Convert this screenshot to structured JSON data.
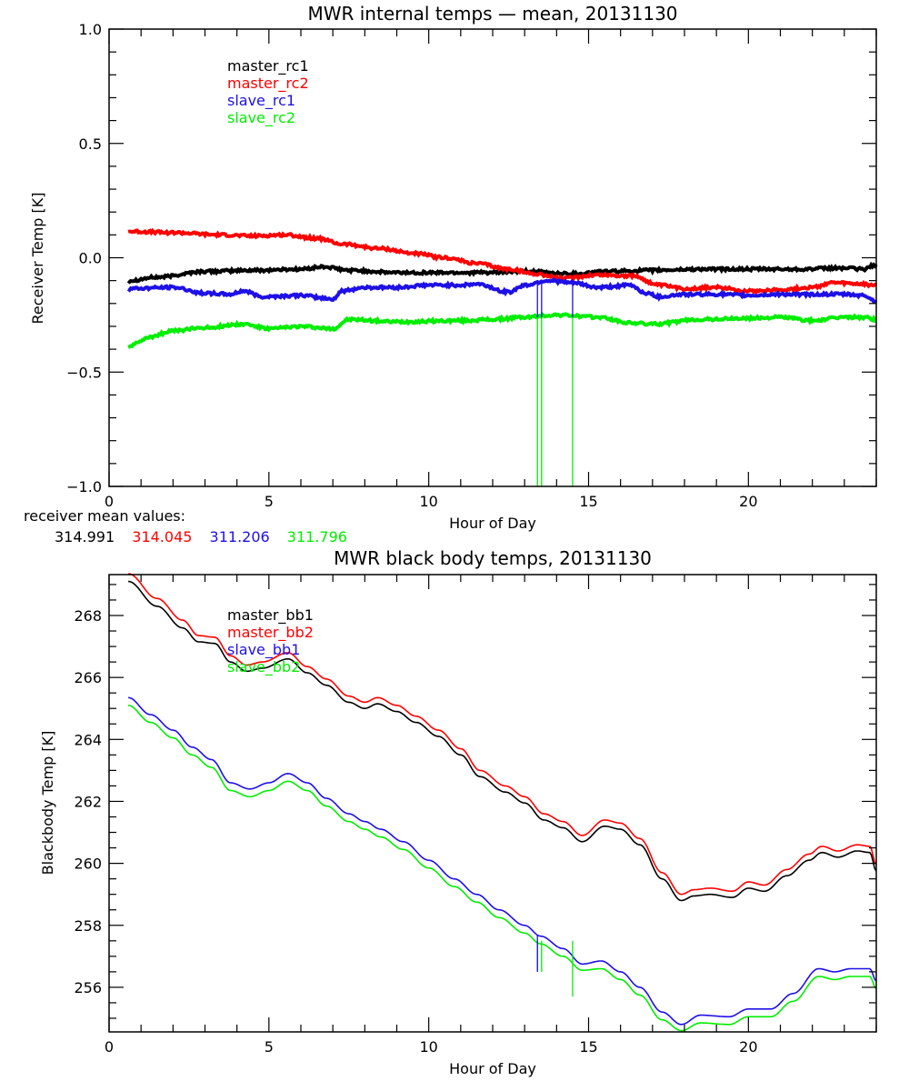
{
  "colors": {
    "black": "#000000",
    "red": "#ff0000",
    "blue": "#1e10e6",
    "green": "#00ee00"
  },
  "chart_data": [
    {
      "type": "line",
      "title": "MWR internal temps — mean, 20131130",
      "xlabel": "Hour of Day",
      "ylabel": "Receiver Temp [K]",
      "xlim": [
        0,
        24
      ],
      "ylim": [
        -1.0,
        1.0
      ],
      "xticks": [
        0,
        5,
        10,
        15,
        20
      ],
      "xtick_labels": [
        "0",
        "5",
        "10",
        "15",
        "20"
      ],
      "yticks": [
        -1.0,
        -0.5,
        0.0,
        0.5,
        1.0
      ],
      "ytick_labels": [
        "−1.0",
        "−0.5",
        "0.0",
        "0.5",
        "1.0"
      ],
      "legend_position": "top-left",
      "series": [
        {
          "name": "master_rc1",
          "color": "#000000",
          "x": [
            0.6,
            1.5,
            3,
            4.5,
            6,
            6.7,
            7.5,
            9,
            10.5,
            12,
            13,
            14.5,
            15.5,
            17,
            18.5,
            20,
            21.5,
            23,
            23.6,
            24
          ],
          "y": [
            -0.1,
            -0.085,
            -0.06,
            -0.055,
            -0.05,
            -0.04,
            -0.055,
            -0.065,
            -0.065,
            -0.065,
            -0.06,
            -0.07,
            -0.06,
            -0.055,
            -0.05,
            -0.05,
            -0.05,
            -0.045,
            -0.05,
            -0.03
          ]
        },
        {
          "name": "master_rc2",
          "color": "#ff0000",
          "x": [
            0.6,
            2,
            3.5,
            4.5,
            5.5,
            6.5,
            7.3,
            8.5,
            9.5,
            10.5,
            11.5,
            12.5,
            13.3,
            14.2,
            15.3,
            16.4,
            17.2,
            18,
            19,
            20,
            21,
            22,
            22.6,
            23.5,
            24
          ],
          "y": [
            0.115,
            0.11,
            0.1,
            0.095,
            0.1,
            0.085,
            0.06,
            0.04,
            0.02,
            0.0,
            -0.025,
            -0.05,
            -0.07,
            -0.09,
            -0.075,
            -0.08,
            -0.12,
            -0.135,
            -0.13,
            -0.145,
            -0.14,
            -0.13,
            -0.11,
            -0.115,
            -0.12
          ]
        },
        {
          "name": "slave_rc1",
          "color": "#1e10e6",
          "x": [
            0.6,
            2,
            3,
            3.8,
            4.2,
            4.8,
            6,
            7,
            7.3,
            8,
            9,
            10,
            11,
            11.5,
            12.5,
            13,
            13.7,
            14.5,
            15.3,
            16.3,
            16.8,
            17.2,
            18,
            19,
            20,
            21,
            22,
            23,
            23.6,
            24
          ],
          "y": [
            -0.135,
            -0.13,
            -0.155,
            -0.16,
            -0.145,
            -0.17,
            -0.165,
            -0.18,
            -0.145,
            -0.13,
            -0.13,
            -0.12,
            -0.12,
            -0.115,
            -0.15,
            -0.12,
            -0.1,
            -0.11,
            -0.13,
            -0.12,
            -0.155,
            -0.17,
            -0.16,
            -0.16,
            -0.165,
            -0.16,
            -0.16,
            -0.16,
            -0.165,
            -0.19
          ]
        },
        {
          "name": "slave_rc2",
          "color": "#00ee00",
          "x": [
            0.6,
            1.2,
            2,
            3,
            4.2,
            5,
            6,
            7,
            7.5,
            9,
            11,
            12,
            13,
            14,
            15.3,
            16.3,
            17,
            18.5,
            20,
            21,
            22,
            23,
            23.6,
            24
          ],
          "y": [
            -0.39,
            -0.35,
            -0.32,
            -0.305,
            -0.29,
            -0.31,
            -0.3,
            -0.31,
            -0.27,
            -0.28,
            -0.275,
            -0.27,
            -0.26,
            -0.25,
            -0.26,
            -0.285,
            -0.29,
            -0.27,
            -0.265,
            -0.26,
            -0.275,
            -0.26,
            -0.26,
            -0.27
          ]
        }
      ],
      "spikes": [
        {
          "color": "#00ee00",
          "x": [
            13.4,
            13.53,
            14.5
          ],
          "y_from": -0.26,
          "y_to": -1.0
        },
        {
          "color": "#1e10e6",
          "x": [
            13.4,
            13.53,
            14.5
          ],
          "y_from": -0.1,
          "y_to": -0.26
        }
      ],
      "annotation_label": "receiver mean values:",
      "annotation_values": [
        {
          "value": "314.991",
          "color": "#000000"
        },
        {
          "value": "314.045",
          "color": "#ff0000"
        },
        {
          "value": "311.206",
          "color": "#1e10e6"
        },
        {
          "value": "311.796",
          "color": "#00ee00"
        }
      ]
    },
    {
      "type": "line",
      "title": "MWR black body temps, 20131130",
      "xlabel": "Hour of Day",
      "ylabel": "Blackbody Temp [K]",
      "xlim": [
        0,
        24
      ],
      "ylim": [
        254.56,
        269.32
      ],
      "xticks": [
        0,
        5,
        10,
        15,
        20
      ],
      "xtick_labels": [
        "0",
        "5",
        "10",
        "15",
        "20"
      ],
      "yticks": [
        256,
        258,
        260,
        262,
        264,
        266,
        268
      ],
      "ytick_labels": [
        "256",
        "258",
        "260",
        "262",
        "264",
        "266",
        "268"
      ],
      "legend_position": "top-left",
      "series": [
        {
          "name": "master_bb1",
          "color": "#000000",
          "x": [
            0.6,
            1.5,
            2.3,
            2.8,
            3.3,
            3.8,
            4.3,
            4.8,
            5.6,
            6.2,
            6.8,
            7.5,
            8.0,
            8.4,
            9.0,
            9.6,
            10.3,
            11.0,
            11.6,
            12.4,
            13.0,
            13.6,
            14.2,
            14.8,
            15.5,
            16.0,
            16.6,
            17.3,
            17.9,
            18.3,
            18.8,
            19.5,
            20.0,
            20.5,
            21.2,
            21.9,
            22.3,
            22.8,
            23.4,
            23.8,
            24
          ],
          "y": [
            269.1,
            268.3,
            267.6,
            267.15,
            267.1,
            266.5,
            266.2,
            266.3,
            266.6,
            266.15,
            265.75,
            265.2,
            265.0,
            265.15,
            264.9,
            264.55,
            264.1,
            263.5,
            262.8,
            262.3,
            261.95,
            261.4,
            261.15,
            260.7,
            261.2,
            261.1,
            260.6,
            259.5,
            258.8,
            258.95,
            259.0,
            258.9,
            259.2,
            259.1,
            259.6,
            260.1,
            260.35,
            260.2,
            260.4,
            260.35,
            259.75
          ]
        },
        {
          "name": "master_bb2",
          "color": "#ff0000",
          "x": [
            0.6,
            1.5,
            2.3,
            2.8,
            3.3,
            3.8,
            4.3,
            4.8,
            5.6,
            6.2,
            6.8,
            7.5,
            8.0,
            8.4,
            9.0,
            9.6,
            10.3,
            11.0,
            11.6,
            12.4,
            13.0,
            13.6,
            14.2,
            14.8,
            15.5,
            16.0,
            16.6,
            17.3,
            17.9,
            18.3,
            18.8,
            19.5,
            20.0,
            20.5,
            21.2,
            21.9,
            22.3,
            22.8,
            23.4,
            23.8,
            24
          ],
          "y": [
            269.35,
            268.55,
            267.85,
            267.35,
            267.3,
            266.7,
            266.4,
            266.5,
            266.8,
            266.35,
            265.95,
            265.4,
            265.2,
            265.35,
            265.1,
            264.75,
            264.3,
            263.7,
            263.0,
            262.5,
            262.15,
            261.6,
            261.35,
            260.9,
            261.4,
            261.3,
            260.8,
            259.7,
            259.0,
            259.15,
            259.2,
            259.1,
            259.4,
            259.3,
            259.8,
            260.3,
            260.55,
            260.4,
            260.6,
            260.55,
            259.95
          ]
        },
        {
          "name": "slave_bb1",
          "color": "#1e10e6",
          "x": [
            0.6,
            1.3,
            2.0,
            2.6,
            3.2,
            3.8,
            4.4,
            5.0,
            5.6,
            6.2,
            6.8,
            7.5,
            8.0,
            8.5,
            9.2,
            10.0,
            10.8,
            11.5,
            12.2,
            13.0,
            13.5,
            14.2,
            14.8,
            15.4,
            16.0,
            16.6,
            17.3,
            17.9,
            18.5,
            19.4,
            20.0,
            20.7,
            21.4,
            22.2,
            22.7,
            23.2,
            23.8,
            24
          ],
          "y": [
            265.35,
            264.8,
            264.3,
            263.75,
            263.35,
            262.6,
            262.4,
            262.6,
            262.9,
            262.6,
            262.1,
            261.6,
            261.35,
            261.1,
            260.7,
            260.1,
            259.5,
            259.0,
            258.5,
            258.0,
            257.65,
            257.25,
            256.75,
            256.85,
            256.5,
            256.0,
            255.2,
            254.8,
            255.1,
            255.05,
            255.3,
            255.3,
            255.8,
            256.6,
            256.5,
            256.6,
            256.6,
            256.2
          ]
        },
        {
          "name": "slave_bb2",
          "color": "#00ee00",
          "x": [
            0.6,
            1.3,
            2.0,
            2.6,
            3.2,
            3.8,
            4.4,
            5.0,
            5.6,
            6.2,
            6.8,
            7.5,
            8.0,
            8.5,
            9.2,
            10.0,
            10.8,
            11.5,
            12.2,
            13.0,
            13.5,
            14.2,
            14.8,
            15.4,
            16.0,
            16.6,
            17.3,
            17.9,
            18.5,
            19.4,
            20.0,
            20.7,
            21.4,
            22.2,
            22.7,
            23.2,
            23.8,
            24
          ],
          "y": [
            265.1,
            264.55,
            264.05,
            263.5,
            263.1,
            262.35,
            262.15,
            262.35,
            262.65,
            262.35,
            261.85,
            261.35,
            261.1,
            260.85,
            260.45,
            259.85,
            259.25,
            258.75,
            258.25,
            257.75,
            257.4,
            257.0,
            256.55,
            256.6,
            256.25,
            255.75,
            254.95,
            254.6,
            254.85,
            254.8,
            255.05,
            255.05,
            255.55,
            256.35,
            256.25,
            256.35,
            256.35,
            255.95
          ]
        }
      ],
      "spikes": [
        {
          "color": "#00ee00",
          "x": [
            13.4,
            13.53,
            14.5
          ],
          "y_from": 257.5,
          "y_to": [
            256.5,
            256.5,
            255.7
          ]
        },
        {
          "color": "#1e10e6",
          "x": [
            13.4
          ],
          "y_from": 257.7,
          "y_to": [
            256.5
          ]
        }
      ]
    }
  ]
}
